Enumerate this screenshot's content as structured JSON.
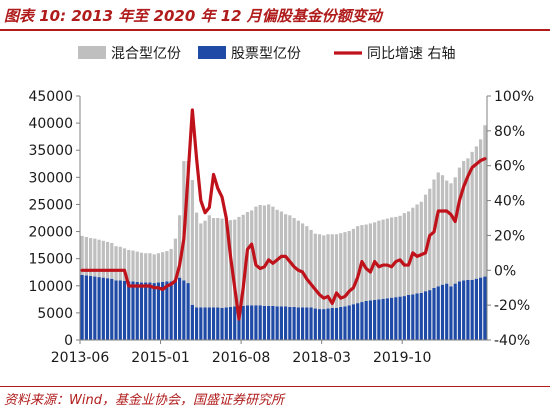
{
  "header": {
    "title": "图表 10:  2013 年至 2020 年 12 月偏股基金份额变动"
  },
  "footer": {
    "source": "资料来源：Wind，基金业协会，国盛证券研究所"
  },
  "colors": {
    "mixed": "#bfbfbf",
    "stock": "#1f4aa6",
    "growth": "#c0121a",
    "accent": "#b01c1c",
    "axis": "#808080"
  },
  "chart_data": {
    "type": "bar",
    "stacked": true,
    "title": "",
    "x_tick_labels": [
      "2013-06",
      "2015-01",
      "2016-08",
      "2018-03",
      "2019-10"
    ],
    "x_tick_indices": [
      0,
      19,
      38,
      57,
      76
    ],
    "y_left_ticks": [
      "0",
      "5000",
      "10000",
      "15000",
      "20000",
      "25000",
      "30000",
      "35000",
      "40000",
      "45000"
    ],
    "y_left_range": [
      0,
      45000
    ],
    "y_right_ticks": [
      "-40%",
      "-20%",
      "0%",
      "20%",
      "40%",
      "60%",
      "80%",
      "100%"
    ],
    "y_right_range": [
      -40,
      100
    ],
    "legend": {
      "position": "top",
      "items": [
        {
          "name": "混合型亿份",
          "marker": "area"
        },
        {
          "name": "股票型亿份",
          "marker": "area"
        },
        {
          "name": "同比增速 右轴",
          "marker": "line"
        }
      ]
    },
    "series": [
      {
        "name": "股票型亿份",
        "axis": "left",
        "values": [
          12000,
          11900,
          11800,
          11700,
          11600,
          11500,
          11400,
          11300,
          11000,
          11000,
          10900,
          10800,
          10800,
          10700,
          10600,
          10600,
          10600,
          10500,
          10600,
          10700,
          10800,
          10800,
          11200,
          11500,
          11000,
          10500,
          6500,
          6000,
          6000,
          6000,
          6000,
          6000,
          6000,
          5900,
          6000,
          6100,
          6200,
          6300,
          6300,
          6400,
          6400,
          6400,
          6400,
          6300,
          6300,
          6300,
          6200,
          6200,
          6200,
          6100,
          6100,
          6000,
          6000,
          6000,
          6000,
          5800,
          5700,
          5700,
          5800,
          5900,
          5900,
          6100,
          6200,
          6400,
          6600,
          6800,
          7000,
          7200,
          7300,
          7400,
          7500,
          7600,
          7700,
          7800,
          7900,
          8000,
          8100,
          8300,
          8400,
          8600,
          8700,
          9000,
          9200,
          9600,
          9900,
          10200,
          10400,
          9900,
          10400,
          10800,
          11000,
          11100,
          11100,
          11300,
          11500,
          11700
        ]
      },
      {
        "name": "混合型亿份",
        "axis": "left",
        "values": [
          7200,
          7100,
          7000,
          7000,
          6900,
          6800,
          6700,
          6600,
          6300,
          6200,
          6000,
          5800,
          5700,
          5600,
          5500,
          5400,
          5400,
          5300,
          5400,
          5500,
          5600,
          6000,
          7500,
          11500,
          22000,
          22500,
          23000,
          17500,
          15500,
          16000,
          17000,
          16500,
          16500,
          16500,
          16500,
          16000,
          16000,
          16400,
          16800,
          17200,
          17500,
          18200,
          18500,
          18500,
          18700,
          18300,
          17800,
          17500,
          17000,
          16900,
          16400,
          16000,
          15500,
          15000,
          14300,
          13800,
          13800,
          13600,
          13700,
          13600,
          13600,
          13600,
          13700,
          13700,
          13900,
          14200,
          14200,
          14100,
          14200,
          14300,
          14500,
          14600,
          14700,
          14800,
          14800,
          14900,
          15300,
          15400,
          16000,
          16400,
          16800,
          17800,
          18700,
          20000,
          21000,
          20200,
          19000,
          19000,
          19600,
          21000,
          22000,
          22400,
          23600,
          24400,
          25500,
          27900
        ]
      },
      {
        "name": "同比增速 右轴",
        "axis": "right",
        "values": [
          0,
          0,
          0,
          0,
          0,
          0,
          0,
          0,
          0,
          0,
          0,
          -9,
          -9,
          -9,
          -9,
          -9,
          -9,
          -10,
          -10,
          -11,
          -9,
          -8,
          -6,
          3,
          18,
          55,
          92,
          64,
          40,
          33,
          36,
          55,
          47,
          42,
          30,
          8,
          -10,
          -28,
          -10,
          12,
          15,
          3,
          1,
          2,
          6,
          4,
          6,
          8,
          8,
          5,
          2,
          0,
          -1,
          -5,
          -8,
          -11,
          -14,
          -16,
          -15,
          -19,
          -13,
          -16,
          -15,
          -12,
          -10,
          -4,
          5,
          1,
          -1,
          5,
          2,
          3,
          3,
          2,
          5,
          6,
          3,
          3,
          10,
          8,
          9,
          10,
          20,
          22,
          34,
          34,
          34,
          32,
          28,
          40,
          48,
          54,
          59,
          61,
          63,
          64
        ]
      }
    ]
  }
}
